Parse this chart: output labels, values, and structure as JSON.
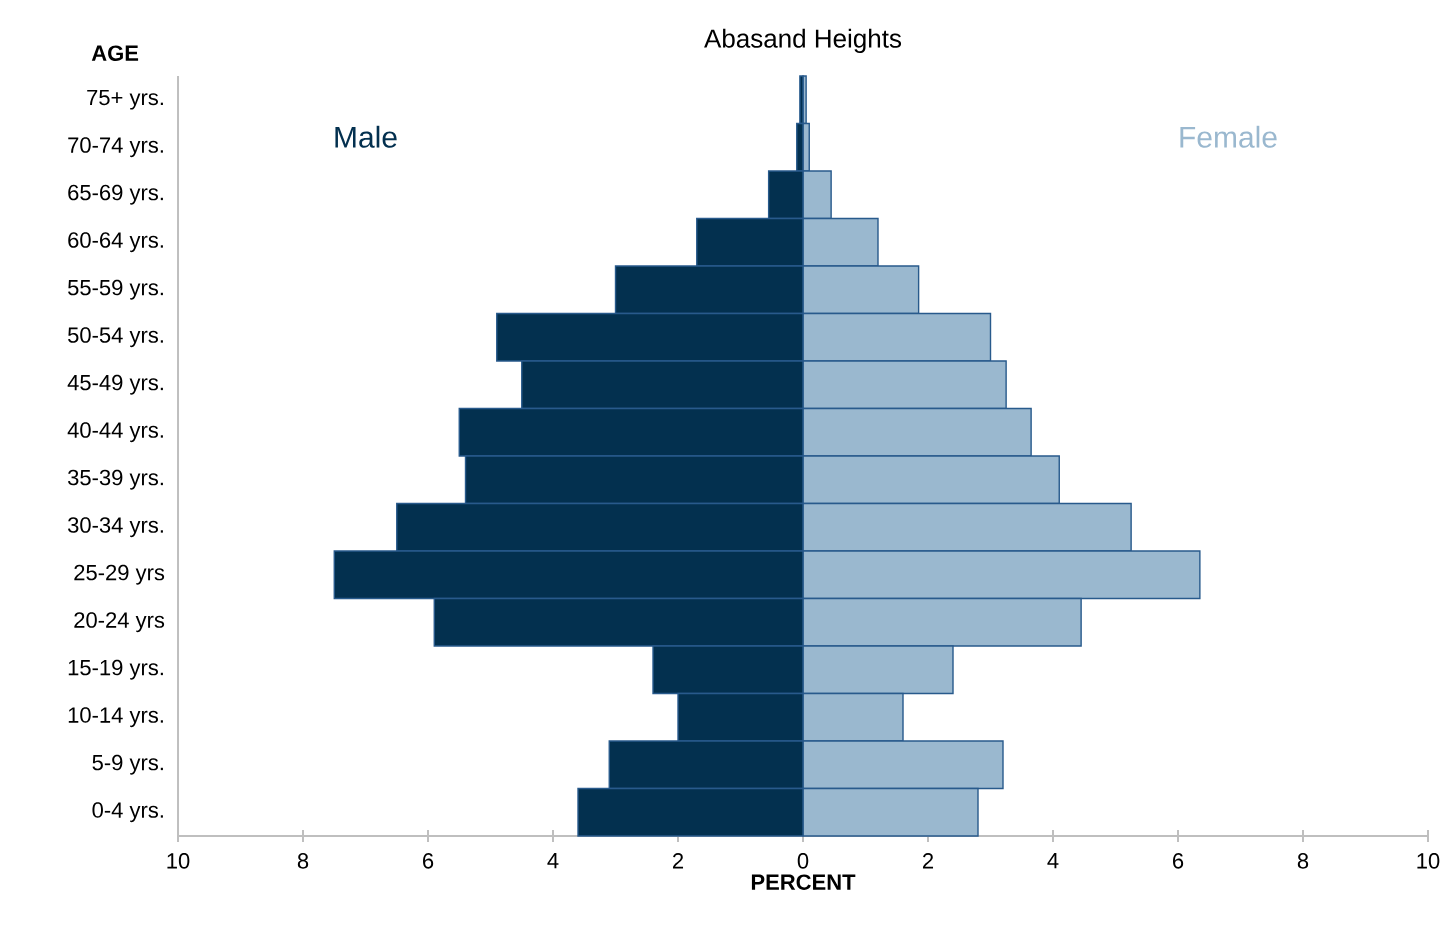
{
  "chart_data": {
    "type": "bar",
    "orientation": "horizontal",
    "title": "Abasand Heights",
    "xlabel": "PERCENT",
    "ylabel": "AGE",
    "categories": [
      "75+ yrs.",
      "70-74 yrs.",
      "65-69 yrs.",
      "60-64 yrs.",
      "55-59 yrs.",
      "50-54 yrs.",
      "45-49 yrs.",
      "40-44 yrs.",
      "35-39 yrs.",
      "30-34 yrs.",
      "25-29 yrs",
      "20-24 yrs",
      "15-19 yrs.",
      "10-14 yrs.",
      "5-9 yrs.",
      "0-4 yrs."
    ],
    "series": [
      {
        "name": "Male",
        "color": "#03304f",
        "values": [
          -0.05,
          -0.1,
          -0.55,
          -1.7,
          -3.0,
          -4.9,
          -4.5,
          -5.5,
          -5.4,
          -6.5,
          -7.5,
          -5.9,
          -2.4,
          -2.0,
          -3.1,
          -3.6
        ]
      },
      {
        "name": "Female",
        "color": "#9ab8cf",
        "values": [
          0.05,
          0.1,
          0.45,
          1.2,
          1.85,
          3.0,
          3.25,
          3.65,
          4.1,
          5.25,
          6.35,
          4.45,
          2.4,
          1.6,
          3.2,
          2.8
        ]
      }
    ],
    "xlim": [
      -10,
      10
    ],
    "xticks": [
      {
        "value": -10,
        "label": "10"
      },
      {
        "value": -8,
        "label": "8"
      },
      {
        "value": -6,
        "label": "6"
      },
      {
        "value": -4,
        "label": "4"
      },
      {
        "value": -2,
        "label": "2"
      },
      0,
      2,
      4,
      6,
      8,
      10
    ],
    "stacked": true,
    "grid": false,
    "legend": false
  }
}
